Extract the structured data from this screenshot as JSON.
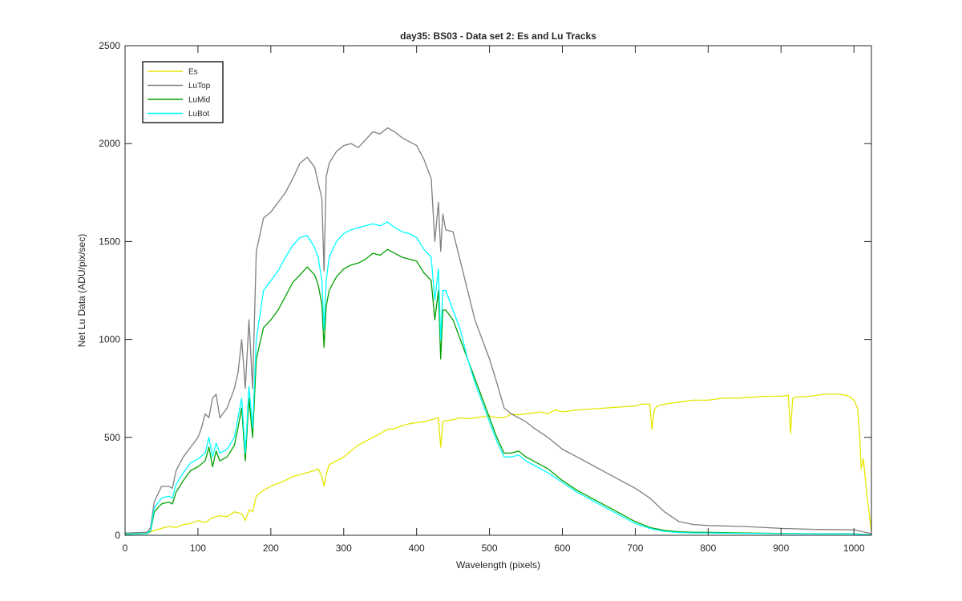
{
  "chart_data": {
    "type": "line",
    "title": "day35: BS03 - Data set 2: Es and Lu Tracks",
    "xlabel": "Wavelength (pixels)",
    "ylabel": "Net Lu Data (ADU/pix/sec)",
    "xlim": [
      0,
      1024
    ],
    "ylim": [
      0,
      2500
    ],
    "xticks": [
      0,
      100,
      200,
      300,
      400,
      500,
      600,
      700,
      800,
      900,
      1000
    ],
    "yticks": [
      0,
      500,
      1000,
      1500,
      2000,
      2500
    ],
    "grid": false,
    "legend_position": "top-left",
    "series": [
      {
        "name": "Es",
        "color": "#e6e600",
        "x": [
          0,
          30,
          40,
          50,
          60,
          70,
          80,
          90,
          100,
          110,
          120,
          130,
          140,
          150,
          160,
          165,
          170,
          175,
          180,
          190,
          200,
          210,
          220,
          230,
          240,
          250,
          260,
          265,
          270,
          273,
          276,
          280,
          290,
          300,
          310,
          320,
          330,
          340,
          350,
          360,
          370,
          380,
          390,
          400,
          410,
          420,
          430,
          433,
          436,
          440,
          450,
          460,
          470,
          480,
          490,
          500,
          510,
          520,
          530,
          540,
          550,
          560,
          570,
          580,
          590,
          600,
          620,
          640,
          660,
          680,
          700,
          710,
          720,
          723,
          726,
          730,
          740,
          750,
          760,
          780,
          800,
          820,
          840,
          860,
          880,
          900,
          910,
          913,
          916,
          920,
          940,
          960,
          980,
          990,
          995,
          1000,
          1005,
          1008,
          1010,
          1013,
          1018,
          1024
        ],
        "y": [
          10,
          12,
          25,
          35,
          45,
          40,
          55,
          60,
          75,
          65,
          90,
          100,
          95,
          120,
          110,
          75,
          130,
          120,
          200,
          230,
          250,
          265,
          280,
          300,
          310,
          320,
          330,
          340,
          300,
          250,
          310,
          360,
          380,
          400,
          430,
          460,
          480,
          500,
          520,
          540,
          545,
          560,
          570,
          575,
          580,
          590,
          600,
          450,
          580,
          585,
          590,
          600,
          595,
          600,
          605,
          610,
          600,
          600,
          620,
          615,
          620,
          625,
          630,
          620,
          640,
          630,
          640,
          645,
          650,
          655,
          660,
          670,
          670,
          540,
          640,
          660,
          670,
          675,
          680,
          690,
          690,
          700,
          700,
          705,
          710,
          710,
          715,
          520,
          700,
          705,
          710,
          720,
          720,
          715,
          705,
          690,
          650,
          500,
          340,
          390,
          200,
          20
        ]
      },
      {
        "name": "LuTop",
        "color": "#7f7f7f",
        "x": [
          0,
          30,
          35,
          40,
          50,
          60,
          65,
          70,
          80,
          90,
          100,
          105,
          110,
          115,
          120,
          125,
          130,
          140,
          150,
          155,
          160,
          165,
          170,
          175,
          180,
          190,
          200,
          210,
          220,
          230,
          240,
          250,
          260,
          265,
          270,
          273,
          276,
          280,
          290,
          300,
          310,
          320,
          330,
          340,
          350,
          360,
          370,
          380,
          390,
          400,
          410,
          420,
          425,
          430,
          433,
          436,
          440,
          450,
          460,
          470,
          480,
          490,
          500,
          510,
          520,
          530,
          540,
          550,
          560,
          580,
          600,
          620,
          640,
          660,
          680,
          700,
          720,
          740,
          760,
          780,
          800,
          850,
          900,
          950,
          1000,
          1010,
          1024
        ],
        "y": [
          12,
          15,
          40,
          170,
          250,
          250,
          240,
          330,
          400,
          450,
          500,
          550,
          620,
          600,
          700,
          720,
          600,
          650,
          750,
          830,
          1000,
          750,
          1100,
          750,
          1450,
          1620,
          1650,
          1700,
          1750,
          1820,
          1900,
          1930,
          1880,
          1800,
          1720,
          1350,
          1830,
          1900,
          1960,
          1990,
          2000,
          1980,
          2020,
          2060,
          2050,
          2080,
          2060,
          2030,
          2010,
          1990,
          1920,
          1820,
          1500,
          1700,
          1450,
          1640,
          1560,
          1550,
          1400,
          1250,
          1100,
          1000,
          900,
          780,
          650,
          620,
          600,
          580,
          550,
          500,
          440,
          400,
          360,
          320,
          280,
          240,
          190,
          120,
          70,
          55,
          50,
          45,
          35,
          30,
          28,
          20,
          8
        ]
      },
      {
        "name": "LuMid",
        "color": "#00a000",
        "x": [
          0,
          30,
          35,
          40,
          50,
          60,
          65,
          70,
          80,
          90,
          100,
          110,
          115,
          120,
          125,
          130,
          140,
          150,
          155,
          160,
          165,
          170,
          175,
          180,
          190,
          200,
          210,
          220,
          230,
          240,
          250,
          260,
          265,
          270,
          273,
          276,
          280,
          290,
          300,
          310,
          320,
          330,
          340,
          350,
          360,
          370,
          380,
          390,
          400,
          410,
          420,
          425,
          430,
          433,
          436,
          440,
          450,
          460,
          470,
          480,
          490,
          500,
          510,
          520,
          530,
          540,
          550,
          560,
          580,
          600,
          620,
          640,
          660,
          680,
          700,
          720,
          740,
          760,
          780,
          800,
          850,
          900,
          950,
          1000,
          1010,
          1024
        ],
        "y": [
          5,
          8,
          20,
          120,
          160,
          170,
          160,
          220,
          280,
          330,
          350,
          380,
          450,
          350,
          430,
          380,
          400,
          460,
          550,
          650,
          380,
          700,
          500,
          900,
          1060,
          1100,
          1150,
          1220,
          1290,
          1330,
          1370,
          1330,
          1280,
          1180,
          960,
          1170,
          1250,
          1320,
          1360,
          1380,
          1390,
          1410,
          1440,
          1430,
          1460,
          1440,
          1420,
          1410,
          1400,
          1340,
          1300,
          1100,
          1250,
          900,
          1150,
          1150,
          1100,
          1000,
          900,
          800,
          700,
          600,
          500,
          420,
          420,
          430,
          400,
          380,
          340,
          280,
          230,
          190,
          150,
          110,
          70,
          40,
          25,
          18,
          15,
          15,
          12,
          10,
          8,
          8,
          5,
          3
        ]
      },
      {
        "name": "LuBot",
        "color": "#00ffff",
        "x": [
          0,
          30,
          35,
          40,
          50,
          60,
          65,
          70,
          80,
          90,
          100,
          110,
          115,
          120,
          125,
          130,
          140,
          150,
          155,
          160,
          165,
          170,
          175,
          180,
          190,
          200,
          210,
          220,
          230,
          240,
          250,
          260,
          265,
          270,
          273,
          276,
          280,
          290,
          300,
          310,
          320,
          330,
          340,
          350,
          360,
          370,
          380,
          390,
          400,
          410,
          420,
          425,
          430,
          433,
          436,
          440,
          450,
          460,
          470,
          480,
          490,
          500,
          510,
          520,
          530,
          540,
          550,
          560,
          580,
          600,
          620,
          640,
          660,
          680,
          700,
          720,
          740,
          760,
          780,
          800,
          850,
          900,
          950,
          1000,
          1010,
          1024
        ],
        "y": [
          6,
          9,
          25,
          140,
          190,
          200,
          190,
          260,
          320,
          370,
          390,
          420,
          500,
          400,
          470,
          420,
          440,
          500,
          600,
          700,
          420,
          760,
          550,
          1000,
          1250,
          1300,
          1350,
          1420,
          1480,
          1520,
          1530,
          1470,
          1420,
          1300,
          1050,
          1300,
          1420,
          1500,
          1540,
          1560,
          1570,
          1580,
          1590,
          1580,
          1600,
          1570,
          1550,
          1540,
          1520,
          1460,
          1420,
          1200,
          1360,
          1000,
          1250,
          1250,
          1150,
          1050,
          900,
          780,
          680,
          580,
          480,
          400,
          400,
          410,
          380,
          360,
          320,
          270,
          220,
          180,
          140,
          100,
          60,
          35,
          20,
          14,
          12,
          12,
          10,
          8,
          7,
          7,
          4,
          2
        ]
      }
    ]
  }
}
